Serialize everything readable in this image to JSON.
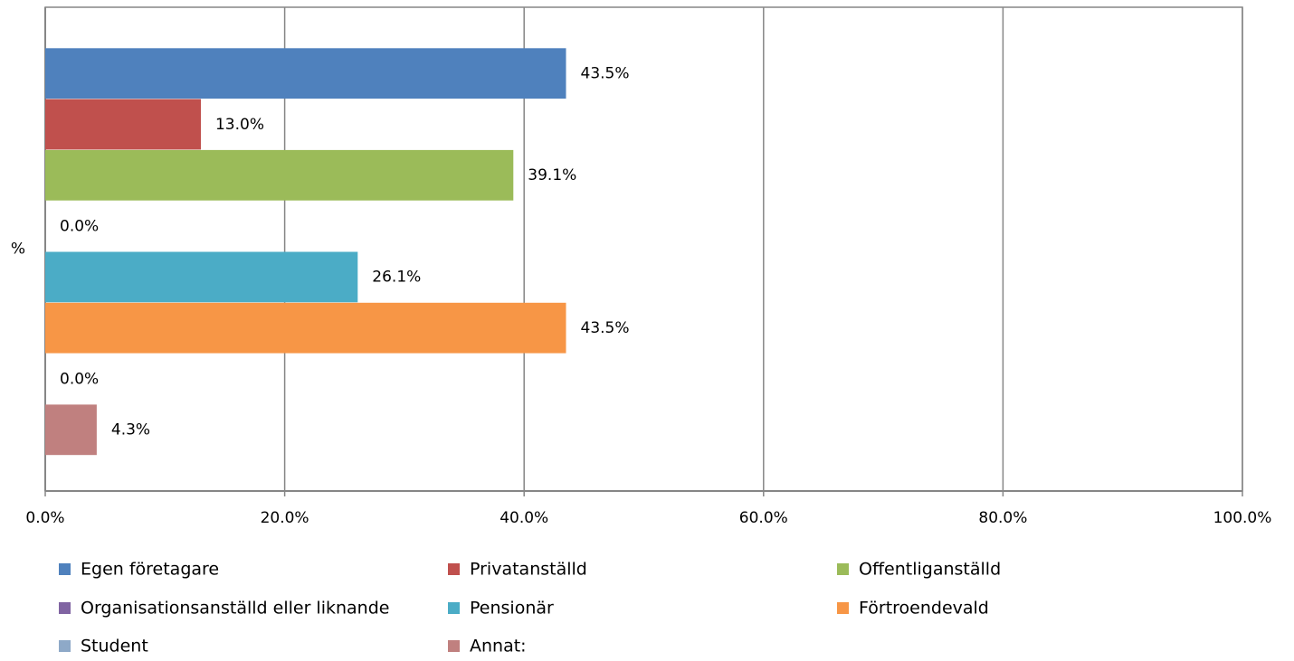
{
  "chart_data": {
    "type": "hbar",
    "categories": [
      "%"
    ],
    "series": [
      {
        "name": "Egen företagare",
        "color": "#4f81bd",
        "values": [
          43.5
        ],
        "value_labels": [
          "43.5%"
        ]
      },
      {
        "name": "Privatanställd",
        "color": "#c0504d",
        "values": [
          13.0
        ],
        "value_labels": [
          "13.0%"
        ]
      },
      {
        "name": "Offentliganställd",
        "color": "#9bbb59",
        "values": [
          39.1
        ],
        "value_labels": [
          "39.1%"
        ]
      },
      {
        "name": "Organisationsanställd eller liknande",
        "color": "#8064a2",
        "values": [
          0.0
        ],
        "value_labels": [
          "0.0%"
        ]
      },
      {
        "name": "Pensionär",
        "color": "#4bacc6",
        "values": [
          26.1
        ],
        "value_labels": [
          "26.1%"
        ]
      },
      {
        "name": "Förtroendevald",
        "color": "#f79646",
        "values": [
          43.5
        ],
        "value_labels": [
          "43.5%"
        ]
      },
      {
        "name": "Student",
        "color": "#8ea9c8",
        "values": [
          0.0
        ],
        "value_labels": [
          "0.0%"
        ]
      },
      {
        "name": "Annat:",
        "color": "#c0807f",
        "values": [
          4.3
        ],
        "value_labels": [
          "4.3%"
        ]
      }
    ],
    "xlim": [
      0,
      100
    ],
    "xticks": [
      {
        "value": 0,
        "label": "0.0%"
      },
      {
        "value": 20,
        "label": "20.0%"
      },
      {
        "value": 40,
        "label": "40.0%"
      },
      {
        "value": 60,
        "label": "60.0%"
      },
      {
        "value": 80,
        "label": "80.0%"
      },
      {
        "value": 100,
        "label": "100.0%"
      }
    ],
    "grid": true
  }
}
